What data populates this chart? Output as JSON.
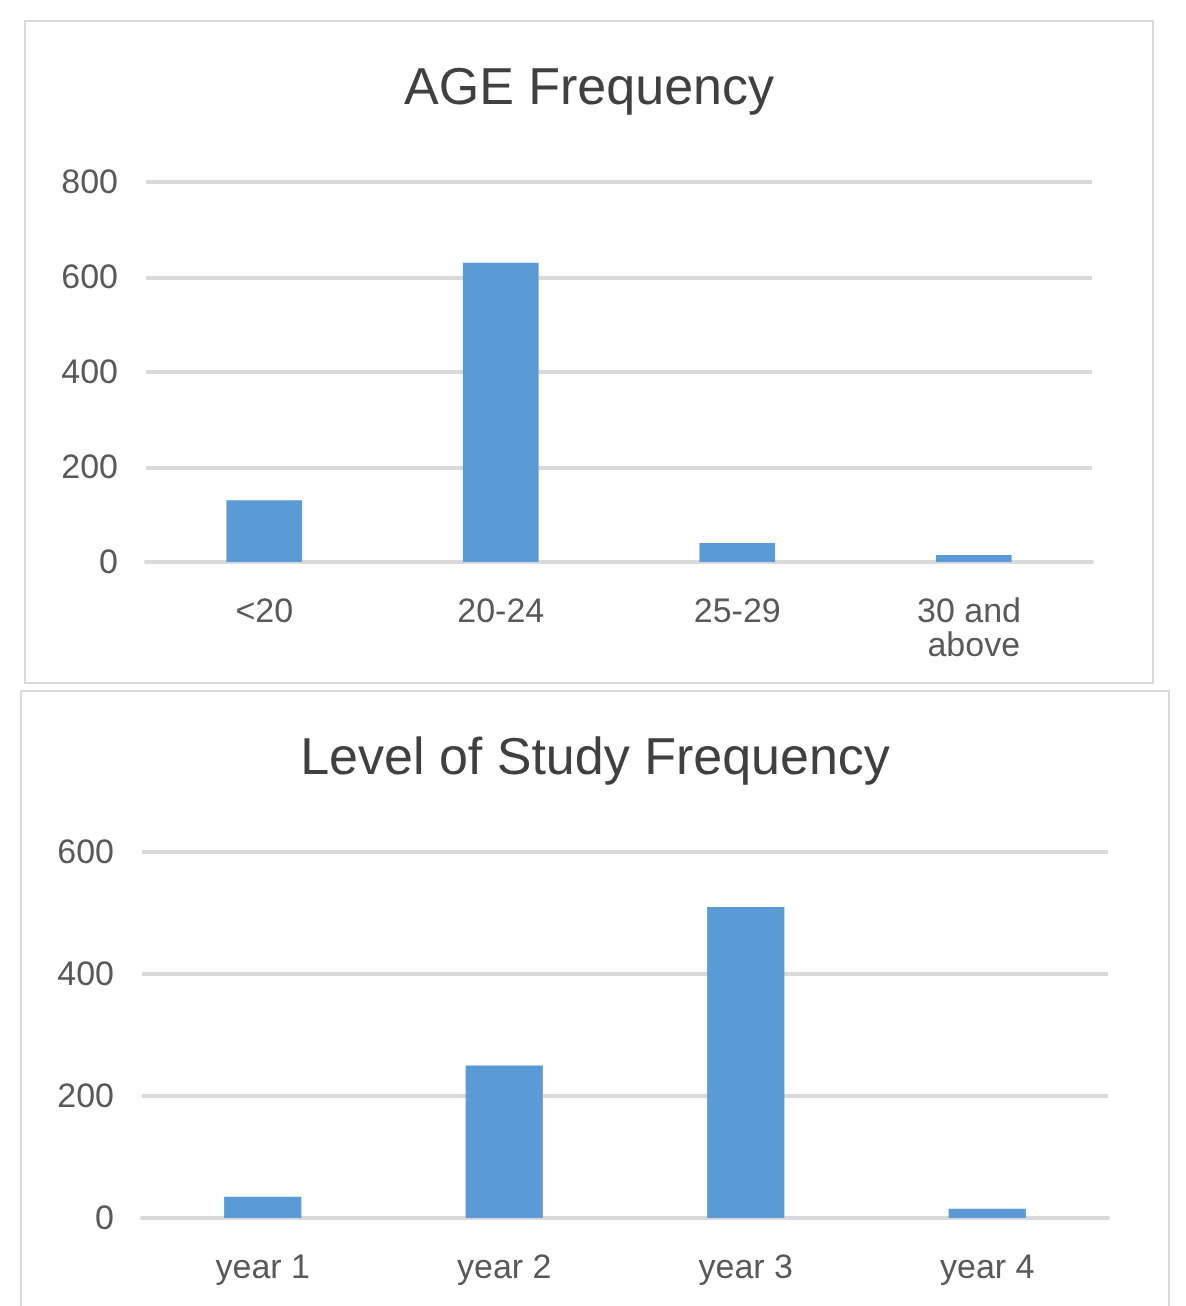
{
  "chart_data": [
    {
      "type": "bar",
      "title": "AGE Frequency",
      "categories": [
        "<20",
        "20-24",
        "25-29",
        "30 and above"
      ],
      "values": [
        130,
        630,
        40,
        15
      ],
      "color": "#5b9bd5",
      "ylim": [
        0,
        800
      ],
      "yticks": [
        0,
        200,
        400,
        600,
        800
      ],
      "grid": "y"
    },
    {
      "type": "bar",
      "title": "Level of Study Frequency",
      "categories": [
        "year 1",
        "year 2",
        "year 3",
        "year 4"
      ],
      "values": [
        35,
        250,
        510,
        15
      ],
      "color": "#5b9bd5",
      "ylim": [
        0,
        600
      ],
      "yticks": [
        0,
        200,
        400,
        600
      ],
      "grid": "y"
    }
  ]
}
